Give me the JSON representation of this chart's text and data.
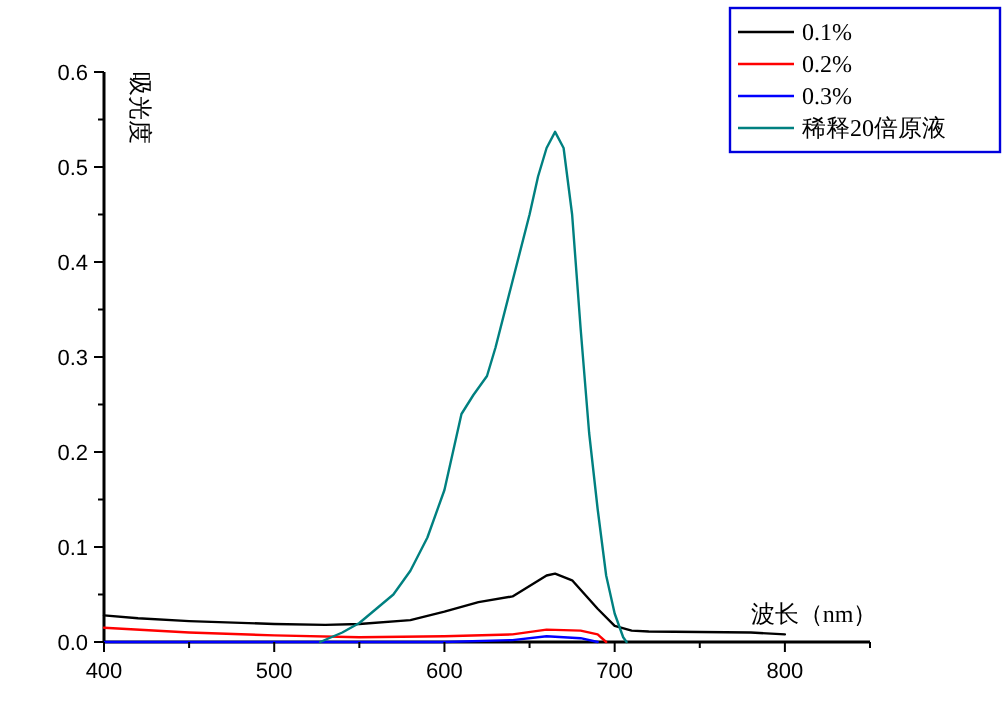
{
  "chart_data": {
    "type": "line",
    "xlabel": "波长（nm）",
    "ylabel": "吸光度",
    "legend": "top right",
    "grid": false,
    "marker": "none",
    "line_style": "solid",
    "xlim": [
      400,
      850
    ],
    "xticks": [
      400,
      {
        "value": 450,
        "label": null
      },
      500,
      {
        "value": 550,
        "label": null
      },
      600,
      {
        "value": 650,
        "label": null
      },
      700,
      {
        "value": 750,
        "label": null
      },
      800,
      {
        "value": 850,
        "label": null
      }
    ],
    "ylim": [
      0,
      0.6
    ],
    "yticks": [
      {
        "value": 0,
        "label": "0.0"
      },
      {
        "value": 0.05,
        "label": null
      },
      0.1,
      {
        "value": 0.15,
        "label": null
      },
      0.2,
      {
        "value": 0.25,
        "label": null
      },
      0.3,
      {
        "value": 0.35,
        "label": null
      },
      0.4,
      {
        "value": 0.45,
        "label": null
      },
      0.5,
      {
        "value": 0.55,
        "label": null
      },
      0.6
    ],
    "series": [
      {
        "name": "0.1%",
        "color": "#000000",
        "x": [
          400,
          420,
          450,
          500,
          530,
          550,
          580,
          600,
          620,
          640,
          660,
          665,
          675,
          690,
          700,
          710,
          720,
          780,
          800
        ],
        "values": [
          0.028,
          0.025,
          0.022,
          0.019,
          0.018,
          0.019,
          0.023,
          0.032,
          0.042,
          0.048,
          0.07,
          0.072,
          0.065,
          0.035,
          0.017,
          0.012,
          0.011,
          0.01,
          0.008
        ]
      },
      {
        "name": "0.2%",
        "color": "#ff0000",
        "x": [
          400,
          450,
          500,
          550,
          600,
          640,
          660,
          680,
          690,
          695
        ],
        "values": [
          0.015,
          0.01,
          0.007,
          0.005,
          0.006,
          0.008,
          0.013,
          0.012,
          0.008,
          0
        ]
      },
      {
        "name": "0.3%",
        "color": "#0000ff",
        "x": [
          400,
          600,
          640,
          660,
          680,
          690
        ],
        "values": [
          0,
          0,
          0.002,
          0.006,
          0.004,
          0
        ]
      },
      {
        "name": "稀释20倍原液",
        "color": "#008080",
        "x": [
          527,
          540,
          550,
          560,
          570,
          580,
          590,
          600,
          605,
          610,
          617,
          625,
          630,
          640,
          650,
          655,
          660,
          665,
          670,
          675,
          680,
          685,
          690,
          695,
          700,
          705,
          707
        ],
        "values": [
          0,
          0.01,
          0.02,
          0.035,
          0.05,
          0.075,
          0.11,
          0.16,
          0.2,
          0.24,
          0.26,
          0.28,
          0.31,
          0.38,
          0.45,
          0.49,
          0.52,
          0.537,
          0.52,
          0.45,
          0.33,
          0.22,
          0.14,
          0.07,
          0.03,
          0.005,
          0
        ]
      }
    ]
  }
}
